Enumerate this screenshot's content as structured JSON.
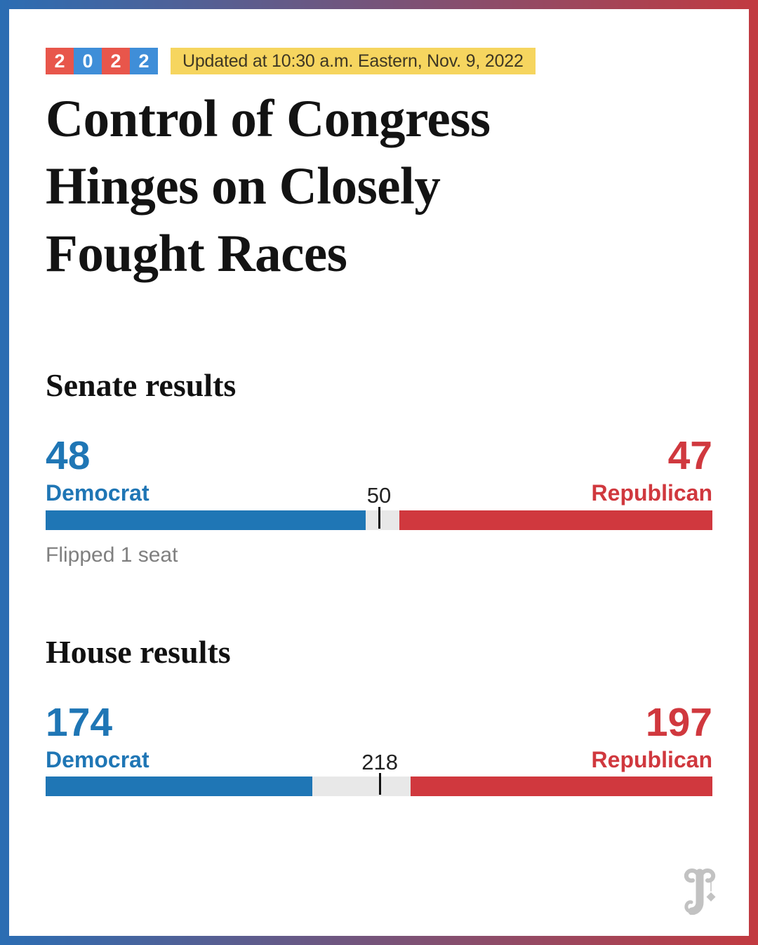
{
  "header": {
    "year_badge": {
      "digits": [
        "2",
        "0",
        "2",
        "2"
      ],
      "colors": [
        "#e8564b",
        "#3f8ed8",
        "#e8564b",
        "#3f8ed8"
      ]
    },
    "updated_banner": {
      "text": "Updated at 10:30 a.m. Eastern, Nov. 9, 2022",
      "bg": "#f6d55f",
      "text_color": "#3e3724"
    }
  },
  "headline": {
    "full": "Control of Congress Hinges on Closely Fought Races",
    "lines": [
      "Control of Congress",
      "Hinges on Closely",
      "Fought Races"
    ]
  },
  "senate": {
    "title": "Senate results",
    "dem_seats": "48",
    "dem_label": "Democrat",
    "rep_seats": "47",
    "rep_label": "Republican",
    "majority_label": "50",
    "note": "Flipped 1 seat"
  },
  "house": {
    "title": "House results",
    "dem_seats": "174",
    "dem_label": "Democrat",
    "rep_seats": "197",
    "rep_label": "Republican",
    "majority_label": "218"
  },
  "branding": {
    "logo": "new-york-times-t-monogram"
  },
  "colors": {
    "democrat": "#1f76b5",
    "republican": "#d0383e",
    "bar_background": "#e8e8e8",
    "majority_tick": "#111111",
    "note_gray": "#7f7f7f",
    "border_gradient_left": "#2b6db3",
    "border_gradient_right": "#c23a40",
    "logo_gray": "#c2c2c2"
  },
  "chart_data": [
    {
      "type": "bar",
      "title": "Senate results",
      "categories": [
        "Democrat",
        "Republican"
      ],
      "values": [
        48,
        47
      ],
      "total": 100,
      "majority_marker": 50,
      "annotation": "Flipped 1 seat",
      "layout": "opposed-horizontal-single-bar",
      "colors": {
        "Democrat": "#1f76b5",
        "Republican": "#d0383e",
        "undecided_gap": "#e8e8e8"
      }
    },
    {
      "type": "bar",
      "title": "House results",
      "categories": [
        "Democrat",
        "Republican"
      ],
      "values": [
        174,
        197
      ],
      "total": 435,
      "majority_marker": 218,
      "annotation": "",
      "layout": "opposed-horizontal-single-bar",
      "colors": {
        "Democrat": "#1f76b5",
        "Republican": "#d0383e",
        "undecided_gap": "#e8e8e8"
      }
    }
  ]
}
